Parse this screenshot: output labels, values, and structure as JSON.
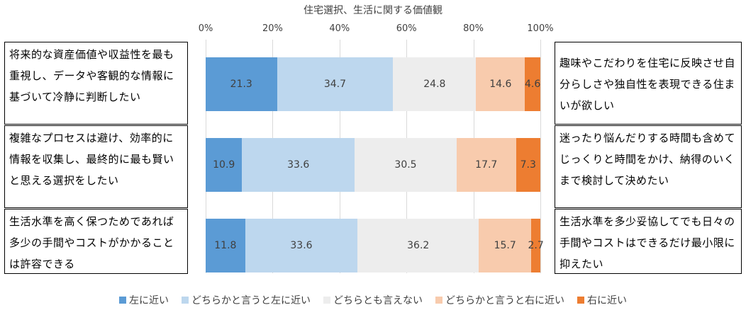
{
  "chart_data": {
    "type": "bar",
    "stacked": true,
    "orientation": "horizontal",
    "percent": true,
    "title": "住宅選択、生活に関する価値観",
    "x_ticks": [
      "0%",
      "20%",
      "40%",
      "60%",
      "80%",
      "100%"
    ],
    "xlim": [
      0,
      100
    ],
    "categories": [
      {
        "left": "将来的な資産価値や収益性を最も重視し、データや客観的な情報に基づいて冷静に判断したい",
        "right": "趣味やこだわりを住宅に反映させ自分らしさや独自性を表現できる住まいが欲しい"
      },
      {
        "left": "複雑なプロセスは避け、効率的に情報を収集し、最終的に最も賢いと思える選択をしたい",
        "right": "迷ったり悩んだりする時間も含めてじっくりと時間をかけ、納得のいくまで検討して決めたい"
      },
      {
        "left": "生活水準を高く保つためであれば多少の手間やコストがかかることは許容できる",
        "right": "生活水準を多少妥協してでも日々の手間やコストはできるだけ最小限に抑えたい"
      }
    ],
    "series": [
      {
        "name": "左に近い",
        "color": "#5b9bd5",
        "values": [
          21.3,
          10.9,
          11.8
        ]
      },
      {
        "name": "どちらかと言うと左に近い",
        "color": "#bdd7ee",
        "values": [
          34.7,
          33.6,
          33.6
        ]
      },
      {
        "name": "どちらとも言えない",
        "color": "#ededed",
        "values": [
          24.8,
          30.5,
          36.2
        ]
      },
      {
        "name": "どちらかと言うと右に近い",
        "color": "#f8cbad",
        "values": [
          14.6,
          17.7,
          15.7
        ]
      },
      {
        "name": "右に近い",
        "color": "#ed7d31",
        "values": [
          4.6,
          7.3,
          2.7
        ]
      }
    ]
  }
}
